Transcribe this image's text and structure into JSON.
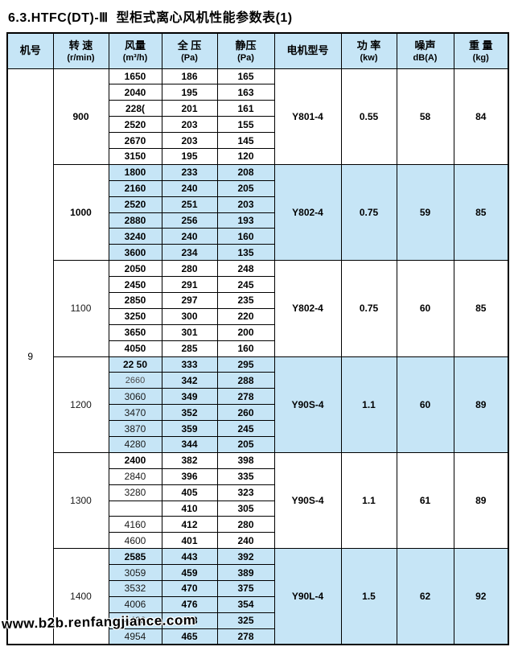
{
  "title": "6.3.HTFC(DT)-Ⅲ  型柜式离心风机性能参数表(1)",
  "colors": {
    "light_blue": "#C6E5F6",
    "border": "#000000",
    "page_bg": "#FFFFFF"
  },
  "watermark": "www.b2b.renfangjiance.com",
  "table": {
    "machine_no": "9",
    "headers": [
      {
        "line1": "机号",
        "line2": ""
      },
      {
        "line1": "转 速",
        "line2": "(r/min)"
      },
      {
        "line1": "风量",
        "line2": "(m³/h)"
      },
      {
        "line1": "全 压",
        "line2": "(Pa)"
      },
      {
        "line1": "静压",
        "line2": "(Pa)"
      },
      {
        "line1": "电机型号",
        "line2": ""
      },
      {
        "line1": "功 率",
        "line2": "(kw)"
      },
      {
        "line1": "噪声",
        "line2": "dB(A)"
      },
      {
        "line1": "重 量",
        "line2": "(kg)"
      }
    ],
    "groups": [
      {
        "rpm": "900",
        "rpm_style": "bold",
        "shaded": false,
        "motor": "Y801-4",
        "power": "0.55",
        "noise": "58",
        "weight": "84",
        "flow_styles": [
          "bold",
          "bold",
          "bold",
          "bold",
          "bold",
          "bold"
        ],
        "rows": [
          [
            "1650",
            "186",
            "165"
          ],
          [
            "2040",
            "195",
            "163"
          ],
          [
            "228(",
            "201",
            "161"
          ],
          [
            "2520",
            "203",
            "155"
          ],
          [
            "2670",
            "203",
            "145"
          ],
          [
            "3150",
            "195",
            "120"
          ]
        ]
      },
      {
        "rpm": "1000",
        "rpm_style": "bold",
        "shaded": true,
        "motor": "Y802-4",
        "power": "0.75",
        "noise": "59",
        "weight": "85",
        "flow_styles": [
          "bold",
          "bold",
          "bold",
          "bold",
          "bold",
          "bold"
        ],
        "rows": [
          [
            "1800",
            "233",
            "208"
          ],
          [
            "2160",
            "240",
            "205"
          ],
          [
            "2520",
            "251",
            "203"
          ],
          [
            "2880",
            "256",
            "193"
          ],
          [
            "3240",
            "240",
            "160"
          ],
          [
            "3600",
            "234",
            "135"
          ]
        ]
      },
      {
        "rpm": "1100",
        "rpm_style": "reg",
        "shaded": false,
        "motor": "Y802-4",
        "power": "0.75",
        "noise": "60",
        "weight": "85",
        "flow_styles": [
          "bold",
          "bold",
          "bold",
          "bold",
          "bold",
          "bold"
        ],
        "rows": [
          [
            "2050",
            "280",
            "248"
          ],
          [
            "2450",
            "291",
            "245"
          ],
          [
            "2850",
            "297",
            "235"
          ],
          [
            "3250",
            "300",
            "220"
          ],
          [
            "3650",
            "301",
            "200"
          ],
          [
            "4050",
            "285",
            "160"
          ]
        ]
      },
      {
        "rpm": "1200",
        "rpm_style": "reg",
        "shaded": true,
        "motor": "Y90S-4",
        "power": "1.1",
        "noise": "60",
        "weight": "89",
        "flow_styles": [
          "bold",
          "small",
          "reg",
          "reg",
          "reg",
          "reg"
        ],
        "rows": [
          [
            "22 50",
            "333",
            "295"
          ],
          [
            "2660",
            "342",
            "288"
          ],
          [
            "3060",
            "349",
            "278"
          ],
          [
            "3470",
            "352",
            "260"
          ],
          [
            "3870",
            "359",
            "245"
          ],
          [
            "4280",
            "344",
            "205"
          ]
        ]
      },
      {
        "rpm": "1300",
        "rpm_style": "reg",
        "shaded": false,
        "motor": "Y90S-4",
        "power": "1.1",
        "noise": "61",
        "weight": "89",
        "flow_styles": [
          "bold",
          "reg",
          "reg",
          "reg",
          "reg",
          "reg"
        ],
        "rows": [
          [
            "2400",
            "382",
            "398"
          ],
          [
            "2840",
            "396",
            "335"
          ],
          [
            "3280",
            "405",
            "323"
          ],
          [
            "",
            "410",
            "305"
          ],
          [
            "4160",
            "412",
            "280"
          ],
          [
            "4600",
            "401",
            "240"
          ]
        ]
      },
      {
        "rpm": "1400",
        "rpm_style": "reg",
        "shaded": true,
        "motor": "Y90L-4",
        "power": "1.5",
        "noise": "62",
        "weight": "92",
        "flow_styles": [
          "bold",
          "reg",
          "reg",
          "reg",
          "reg",
          "reg"
        ],
        "rows": [
          [
            "2585",
            "443",
            "392"
          ],
          [
            "3059",
            "459",
            "389"
          ],
          [
            "3532",
            "470",
            "375"
          ],
          [
            "4006",
            "476",
            "354"
          ],
          [
            "4480",
            "478",
            "325"
          ],
          [
            "4954",
            "465",
            "278"
          ]
        ]
      }
    ]
  }
}
